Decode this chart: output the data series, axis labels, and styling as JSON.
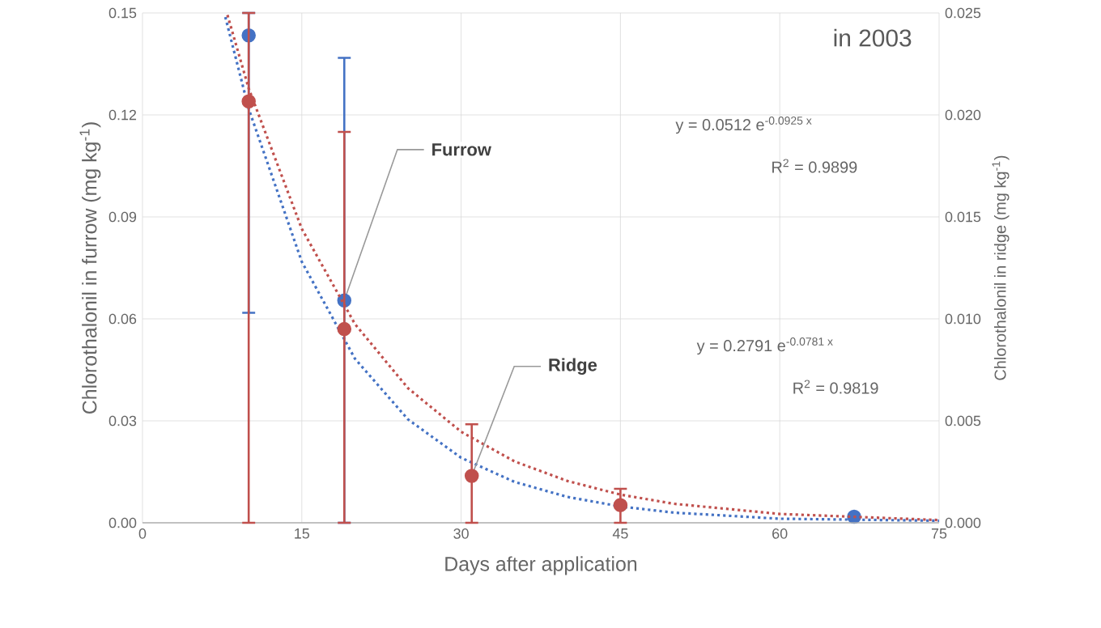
{
  "chart_data": {
    "type": "scatter",
    "title": "in 2003",
    "xlabel": "Days after application",
    "ylabel": "Chlorothalonil in furrow (mg kg$^{-1}$)",
    "y2label": "Chlorothalonil in ridge (mg kg$^{-1}$)",
    "xlim": [
      0,
      75
    ],
    "xticks": [
      0,
      15,
      30,
      45,
      60,
      75
    ],
    "ylim": [
      0,
      0.15
    ],
    "yticks": [
      {
        "value": 0,
        "label": "0.00"
      },
      {
        "value": 0.03,
        "label": "0.03"
      },
      {
        "value": 0.06,
        "label": "0.06"
      },
      {
        "value": 0.09,
        "label": "0.09"
      },
      {
        "value": 0.12,
        "label": "0.12"
      },
      {
        "value": 0.15,
        "label": "0.15"
      }
    ],
    "y2lim": [
      0,
      0.025
    ],
    "y2ticks": [
      {
        "value": 0,
        "label": "0.000"
      },
      {
        "value": 0.005,
        "label": "0.005"
      },
      {
        "value": 0.01,
        "label": "0.010"
      },
      {
        "value": 0.015,
        "label": "0.015"
      },
      {
        "value": 0.02,
        "label": "0.020"
      },
      {
        "value": 0.025,
        "label": "0.025"
      }
    ],
    "grid": true,
    "marker": "circle",
    "annotations": [
      "y = 0.0512 e$^{-0.0925 x}$",
      "R$^{2}$ = 0.9899",
      "y = 0.2791 e$^{-0.0781 x}$",
      "R$^{2}$ = 0.9819"
    ],
    "series": [
      {
        "name": "Furrow",
        "type": "scatter",
        "axis": "y2",
        "color": "#4472c4",
        "x": [
          10,
          19,
          67
        ],
        "values": [
          0.0239,
          0.0109,
          0.0003
        ],
        "errors": [
          [
            0.0103,
            0.025
          ],
          [
            0,
            0.0228
          ],
          null
        ]
      },
      {
        "name": "Ridge",
        "type": "scatter",
        "color": "#c0504d",
        "x": [
          10,
          19,
          31,
          45
        ],
        "values": [
          0.124,
          0.057,
          0.0138,
          0.0052
        ],
        "errors": [
          [
            0,
            0.15
          ],
          [
            0,
            0.115
          ],
          [
            0,
            0.029
          ],
          [
            0,
            0.01
          ]
        ]
      },
      {
        "type": "line",
        "axis": "y2",
        "color": "#4472c4",
        "marker": "none",
        "line_style": "dotted",
        "x": [
          7.8,
          10,
          15,
          20,
          25,
          30,
          35,
          40,
          45,
          50,
          60,
          75
        ],
        "values": [
          0.0248,
          0.0203,
          0.0128,
          0.00805,
          0.00507,
          0.00319,
          0.00201,
          0.00127,
          0.0008,
          0.0005,
          0.0002,
          0.0001
        ]
      },
      {
        "type": "line",
        "color": "#c0504d",
        "marker": "none",
        "line_style": "dotted",
        "x": [
          8,
          10,
          15,
          20,
          25,
          30,
          35,
          40,
          45,
          50,
          60,
          75
        ],
        "values": [
          0.1494,
          0.1278,
          0.0865,
          0.0585,
          0.0396,
          0.0268,
          0.0181,
          0.0123,
          0.0083,
          0.0056,
          0.0026,
          0.0008
        ]
      }
    ]
  }
}
